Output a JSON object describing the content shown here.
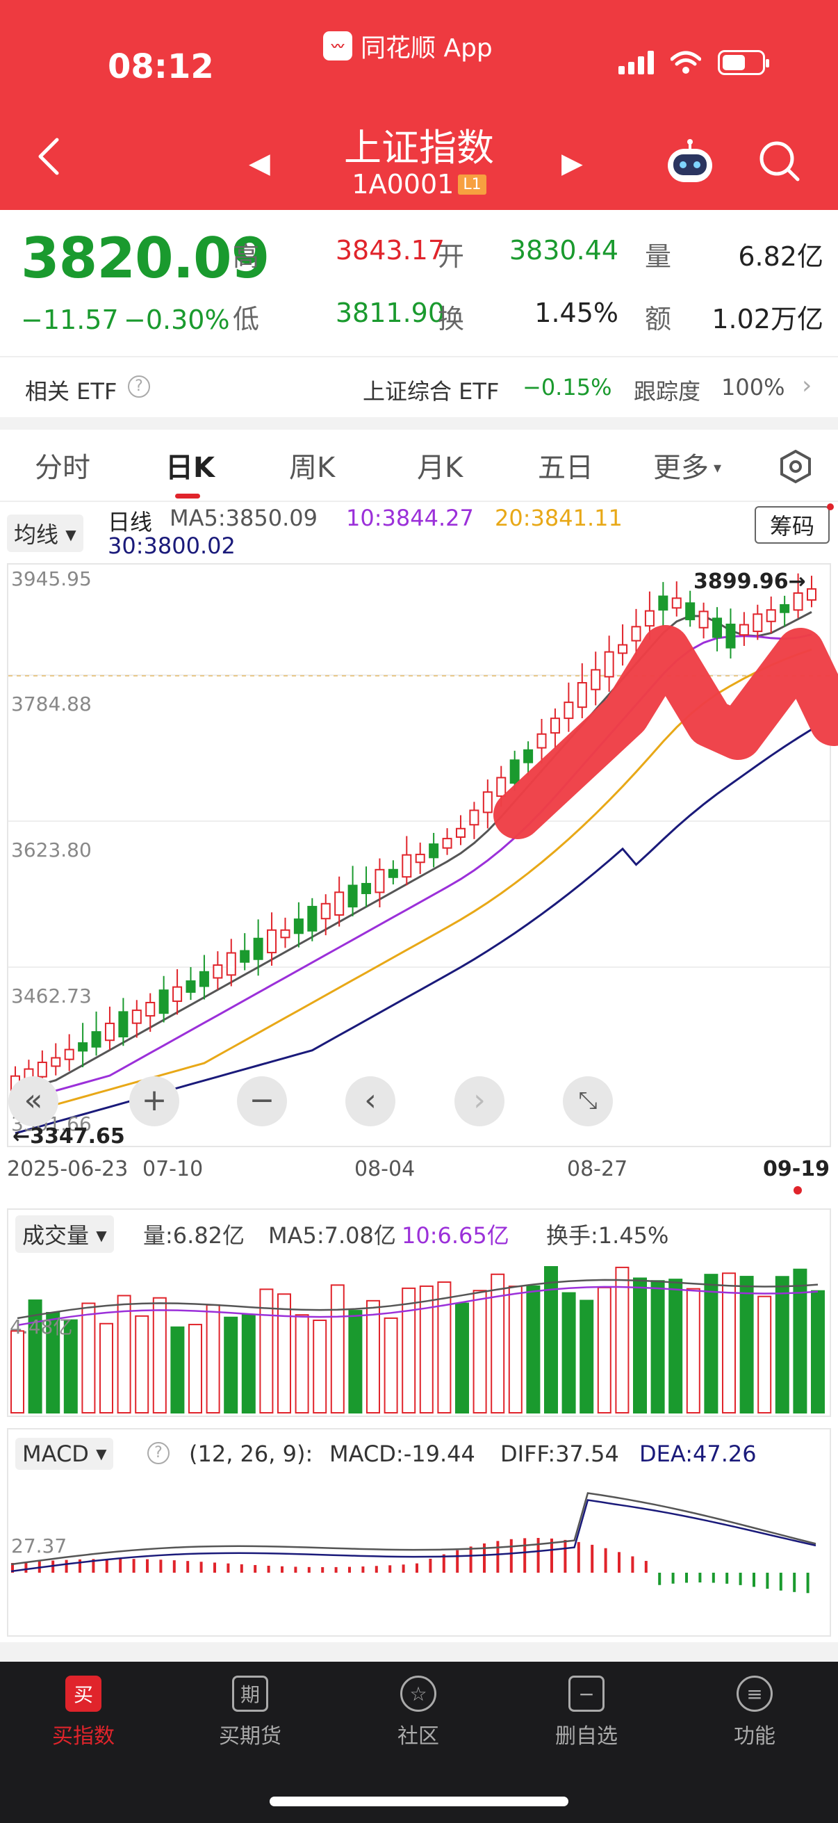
{
  "status_bar": {
    "time": "08:12",
    "app_label": "同花顺 App"
  },
  "header": {
    "title": "上证指数",
    "code": "1A0001",
    "level_badge": "L1"
  },
  "quote": {
    "price": "3820.09",
    "change": "−11.57",
    "change_pct": "−0.30%",
    "high_label": "高",
    "high": "3843.17",
    "open_label": "开",
    "open": "3830.44",
    "vol_label": "量",
    "vol": "6.82亿",
    "low_label": "低",
    "low": "3811.90",
    "turnover_label": "换",
    "turnover": "1.45%",
    "amount_label": "额",
    "amount": "1.02万亿"
  },
  "etf": {
    "label": "相关 ETF",
    "name": "上证综合 ETF",
    "pct": "−0.15%",
    "track_label": "跟踪度",
    "track_value": "100%"
  },
  "tabs": [
    "分时",
    "日K",
    "周K",
    "月K",
    "五日",
    "更多"
  ],
  "ma": {
    "select": "均线",
    "period": "日线",
    "ma5": "MA5:3850.09",
    "ma10": "10:3844.27",
    "ma20": "20:3841.11",
    "ma30": "30:3800.02",
    "chouma": "筹码"
  },
  "kline": {
    "y_labels": [
      "3945.95",
      "3784.88",
      "3623.80",
      "3462.73",
      "3301.66"
    ],
    "high_mark": "3899.96→",
    "low_mark": "←3347.65",
    "dates": [
      "2025-06-23",
      "07-10",
      "08-04",
      "08-27",
      "09-19"
    ]
  },
  "volume": {
    "select": "成交量",
    "vol": "量:6.82亿",
    "ma5": "MA5:7.08亿",
    "ma10": "10:6.65亿",
    "turnover": "换手:1.45%",
    "y_label": "4.48亿"
  },
  "macd": {
    "select": "MACD",
    "params": "(12, 26, 9):",
    "macd": "MACD:-19.44",
    "diff": "DIFF:37.54",
    "dea": "DEA:47.26",
    "y_label": "27.37"
  },
  "bottom_nav": [
    {
      "label": "买指数",
      "glyph": "买"
    },
    {
      "label": "买期货",
      "glyph": "期"
    },
    {
      "label": "社区",
      "glyph": "☆"
    },
    {
      "label": "删自选",
      "glyph": "−"
    },
    {
      "label": "功能",
      "glyph": "≡"
    }
  ],
  "colors": {
    "header": "#ee3a40",
    "up": "#e0242b",
    "down": "#1a9a2e",
    "ma5": "#555555",
    "ma10": "#9b30d9",
    "ma20": "#e8a817",
    "ma30": "#1a1a7a"
  }
}
